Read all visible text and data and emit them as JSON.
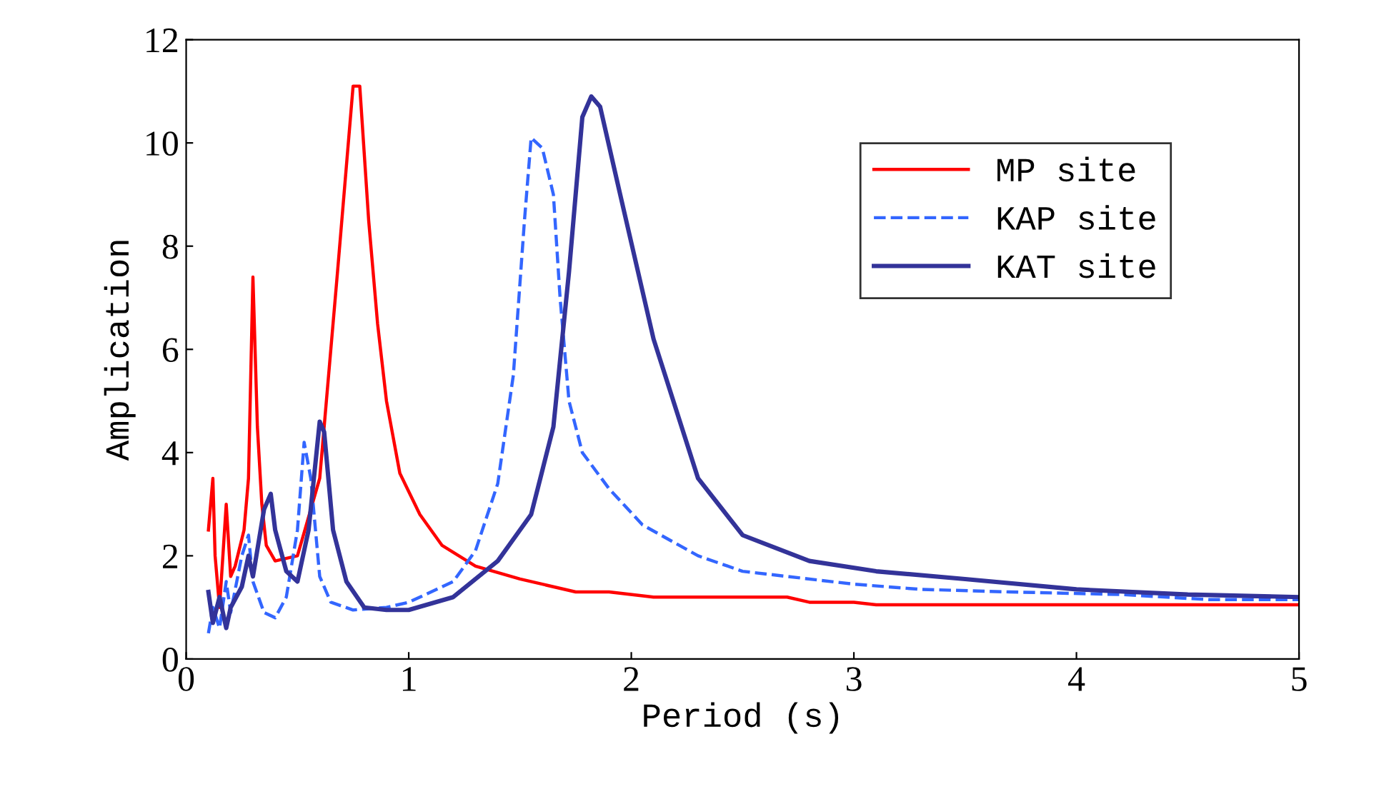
{
  "chart_data": {
    "type": "line",
    "xlabel": "Period (s)",
    "ylabel": "Amplication",
    "xlim": [
      0,
      5
    ],
    "xticks": [
      0,
      1,
      2,
      3,
      4,
      5
    ],
    "ylim": [
      0,
      12
    ],
    "yticks": [
      0,
      2,
      4,
      6,
      8,
      10,
      12
    ],
    "grid": false,
    "legend": "top right",
    "series": [
      {
        "name": "MP site",
        "color": "#ff0000",
        "line_style": "solid",
        "x": [
          0.1,
          0.11,
          0.12,
          0.13,
          0.15,
          0.18,
          0.2,
          0.22,
          0.26,
          0.28,
          0.3,
          0.32,
          0.34,
          0.36,
          0.4,
          0.5,
          0.6,
          0.68,
          0.75,
          0.78,
          0.82,
          0.86,
          0.9,
          0.96,
          1.05,
          1.15,
          1.3,
          1.5,
          1.75,
          1.9,
          2.1,
          2.5,
          2.7,
          2.8,
          3.0,
          3.1,
          5.0
        ],
        "values": [
          2.5,
          3.0,
          3.5,
          2.0,
          1.0,
          3.0,
          1.6,
          1.8,
          2.5,
          3.5,
          7.4,
          4.5,
          3.0,
          2.2,
          1.9,
          2.0,
          3.5,
          7.5,
          11.1,
          11.1,
          8.5,
          6.5,
          5.0,
          3.6,
          2.8,
          2.2,
          1.8,
          1.55,
          1.3,
          1.3,
          1.2,
          1.2,
          1.2,
          1.1,
          1.1,
          1.05,
          1.05
        ]
      },
      {
        "name": "KAP site",
        "color": "#3366ff",
        "line_style": "dashed",
        "x": [
          0.1,
          0.12,
          0.15,
          0.18,
          0.2,
          0.25,
          0.28,
          0.3,
          0.35,
          0.4,
          0.45,
          0.5,
          0.53,
          0.56,
          0.6,
          0.65,
          0.75,
          0.9,
          1.0,
          1.2,
          1.3,
          1.4,
          1.47,
          1.52,
          1.55,
          1.6,
          1.65,
          1.68,
          1.72,
          1.78,
          1.9,
          2.05,
          2.3,
          2.5,
          2.7,
          3.0,
          3.3,
          3.7,
          4.2,
          4.6,
          5.0
        ],
        "values": [
          0.5,
          1.0,
          0.6,
          1.5,
          0.9,
          2.0,
          2.4,
          1.5,
          0.9,
          0.8,
          1.2,
          2.5,
          4.2,
          3.5,
          1.6,
          1.1,
          0.95,
          1.0,
          1.1,
          1.5,
          2.1,
          3.4,
          5.5,
          8.5,
          10.1,
          9.9,
          9.0,
          7.0,
          5.0,
          4.0,
          3.3,
          2.6,
          2.0,
          1.7,
          1.6,
          1.45,
          1.35,
          1.3,
          1.25,
          1.15,
          1.15
        ]
      },
      {
        "name": "KAT site",
        "color": "#333399",
        "line_style": "solid",
        "x": [
          0.1,
          0.12,
          0.15,
          0.18,
          0.2,
          0.25,
          0.28,
          0.3,
          0.35,
          0.38,
          0.4,
          0.45,
          0.5,
          0.55,
          0.6,
          0.62,
          0.66,
          0.72,
          0.8,
          0.9,
          1.0,
          1.2,
          1.4,
          1.55,
          1.65,
          1.72,
          1.78,
          1.82,
          1.86,
          1.95,
          2.1,
          2.3,
          2.5,
          2.8,
          3.1,
          3.5,
          4.0,
          4.5,
          5.0
        ],
        "values": [
          1.3,
          0.7,
          1.2,
          0.6,
          1.0,
          1.4,
          2.0,
          1.6,
          2.9,
          3.2,
          2.5,
          1.7,
          1.5,
          2.5,
          4.6,
          4.4,
          2.5,
          1.5,
          1.0,
          0.95,
          0.95,
          1.2,
          1.9,
          2.8,
          4.5,
          7.5,
          10.5,
          10.9,
          10.7,
          9.0,
          6.2,
          3.5,
          2.4,
          1.9,
          1.7,
          1.55,
          1.35,
          1.25,
          1.2
        ]
      }
    ]
  }
}
